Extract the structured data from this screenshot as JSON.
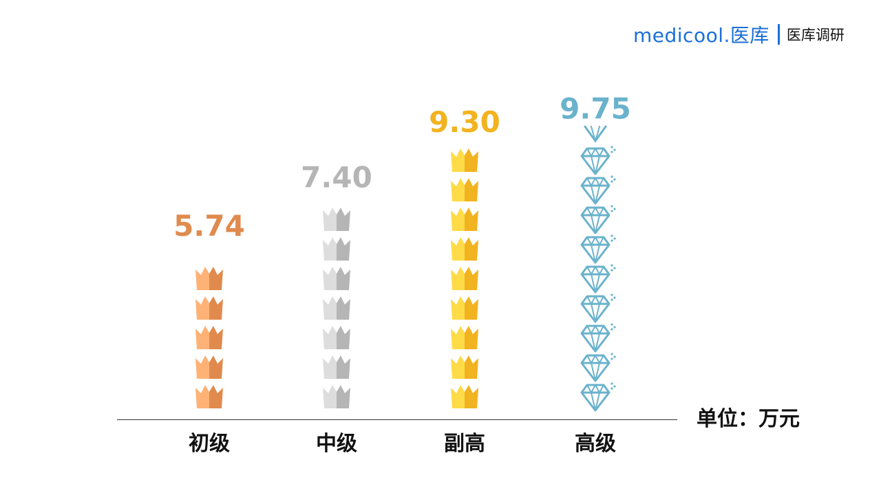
{
  "brand": {
    "logo_text": "medicool.医库",
    "subtitle": "医库调研"
  },
  "unit_label": "单位：万元",
  "chart_data": {
    "type": "bar",
    "categories": [
      "初级",
      "中级",
      "副高",
      "高级"
    ],
    "values": [
      5.74,
      7.4,
      9.3,
      9.75
    ],
    "value_labels": [
      "5.74",
      "7.40",
      "9.30",
      "9.75"
    ],
    "series": [
      {
        "values": [
          5.74,
          7.4,
          9.3,
          9.75
        ]
      }
    ],
    "icons": [
      "crown-icon",
      "crown-icon",
      "crown-icon",
      "diamond-icon"
    ],
    "colors": [
      "#e08a4e",
      "#b5b5b5",
      "#f2b320",
      "#6ab2cc"
    ],
    "title": "",
    "xlabel": "",
    "ylabel": ""
  }
}
